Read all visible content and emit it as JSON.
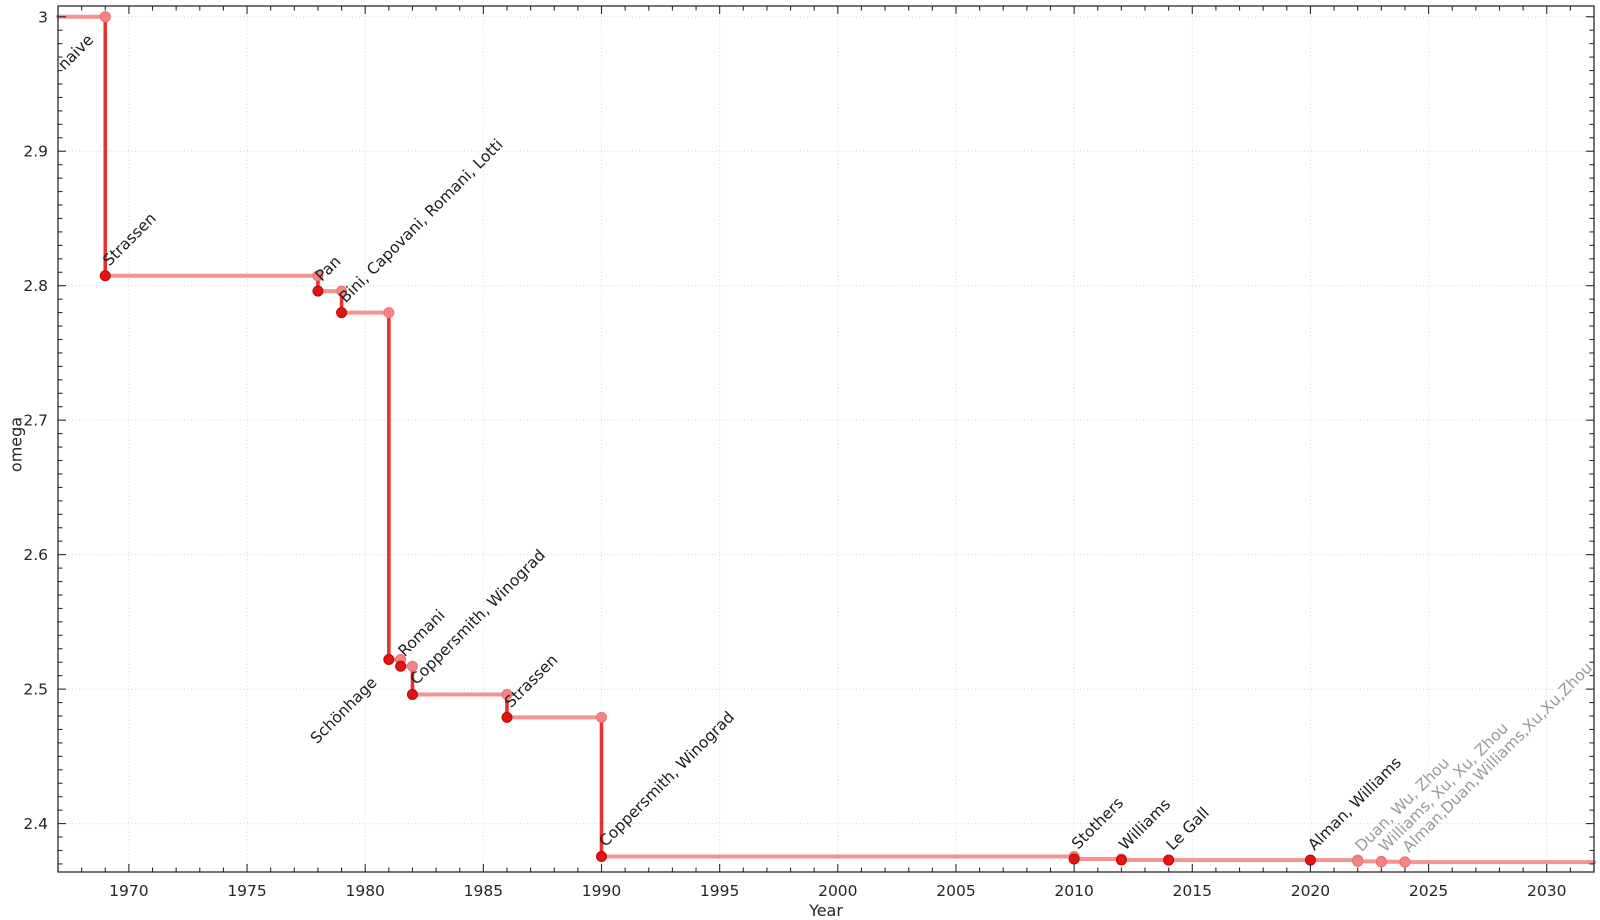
{
  "chart_data": {
    "type": "line",
    "subtype": "step-post-with-drop-lines",
    "title": "",
    "xlabel": "Year",
    "ylabel": "omega",
    "xlim": [
      1967,
      2032
    ],
    "ylim": [
      2.364,
      3.008
    ],
    "grid": true,
    "legend": "none",
    "x_ticks": [
      {
        "v": 1970,
        "label": "1970"
      },
      {
        "v": 1975,
        "label": "1975"
      },
      {
        "v": 1980,
        "label": "1980"
      },
      {
        "v": 1985,
        "label": "1985"
      },
      {
        "v": 1990,
        "label": "1990"
      },
      {
        "v": 1995,
        "label": "1995"
      },
      {
        "v": 2000,
        "label": "2000"
      },
      {
        "v": 2005,
        "label": "2005"
      },
      {
        "v": 2010,
        "label": "2010"
      },
      {
        "v": 2015,
        "label": "2015"
      },
      {
        "v": 2020,
        "label": "2020"
      },
      {
        "v": 2025,
        "label": "2025"
      },
      {
        "v": 2030,
        "label": "2030"
      }
    ],
    "y_ticks": [
      {
        "v": 3.0,
        "label": "3"
      },
      {
        "v": 2.9,
        "label": "2.9"
      },
      {
        "v": 2.8,
        "label": "2.8"
      },
      {
        "v": 2.7,
        "label": "2.7"
      },
      {
        "v": 2.6,
        "label": "2.6"
      },
      {
        "v": 2.5,
        "label": "2.5"
      },
      {
        "v": 2.4,
        "label": "2.4"
      }
    ],
    "points": [
      {
        "year": 1969,
        "omega": 3.0,
        "label": "naive",
        "marker": "light",
        "muted": false,
        "label_anchor": "end"
      },
      {
        "year": 1969,
        "omega": 2.8074,
        "label": "Strassen",
        "marker": "dark",
        "muted": false,
        "label_anchor": "start"
      },
      {
        "year": 1978,
        "omega": 2.796,
        "label": "Pan",
        "marker": "dark",
        "muted": false,
        "label_anchor": "start"
      },
      {
        "year": 1979,
        "omega": 2.78,
        "label": "Bini, Capovani, Romani, Lotti",
        "marker": "dark",
        "muted": false,
        "label_anchor": "start"
      },
      {
        "year": 1981,
        "omega": 2.522,
        "label": "Schönhage",
        "marker": "dark",
        "muted": false,
        "label_anchor": "end"
      },
      {
        "year": 1981.5,
        "omega": 2.517,
        "label": "Romani",
        "marker": "dark",
        "muted": false,
        "label_anchor": "start"
      },
      {
        "year": 1982,
        "omega": 2.496,
        "label": "Coppersmith, Winograd",
        "marker": "dark",
        "muted": false,
        "label_anchor": "start"
      },
      {
        "year": 1986,
        "omega": 2.479,
        "label": "Strassen",
        "marker": "dark",
        "muted": false,
        "label_anchor": "start"
      },
      {
        "year": 1990,
        "omega": 2.3755,
        "label": "Coppersmith, Winograd",
        "marker": "dark",
        "muted": false,
        "label_anchor": "start"
      },
      {
        "year": 2010,
        "omega": 2.3737,
        "label": "Stothers",
        "marker": "dark",
        "muted": false,
        "label_anchor": "start"
      },
      {
        "year": 2012,
        "omega": 2.3729,
        "label": "Williams",
        "marker": "dark",
        "muted": false,
        "label_anchor": "start"
      },
      {
        "year": 2014,
        "omega": 2.3728639,
        "label": "Le Gall",
        "marker": "dark",
        "muted": false,
        "label_anchor": "start"
      },
      {
        "year": 2020,
        "omega": 2.3728596,
        "label": "Alman, Williams",
        "marker": "dark",
        "muted": false,
        "label_anchor": "start"
      },
      {
        "year": 2022,
        "omega": 2.37188,
        "label": "Duan, Wu, Zhou",
        "marker": "light",
        "muted": true,
        "label_anchor": "start"
      },
      {
        "year": 2023,
        "omega": 2.371552,
        "label": "Williams, Xu, Xu, Zhou",
        "marker": "light",
        "muted": true,
        "label_anchor": "start"
      },
      {
        "year": 2024,
        "omega": 2.371339,
        "label": "Alman,Duan,Williams,Xu,Xu,Zhou",
        "marker": "light",
        "muted": true,
        "label_anchor": "start"
      }
    ],
    "colors": {
      "light_line": "#f59393",
      "light_marker_fill": "#f58585",
      "light_marker_stroke": "#ef6f6f",
      "dark_line": "#e5342e",
      "dark_marker_fill": "#e41410",
      "dark_marker_stroke": "#bc0a06",
      "label_dark": "#1c1c1c",
      "label_muted": "#9a9a9a",
      "grid": "#d8d8d8",
      "axis": "#2b2b2b",
      "tick_label": "#262626"
    }
  }
}
